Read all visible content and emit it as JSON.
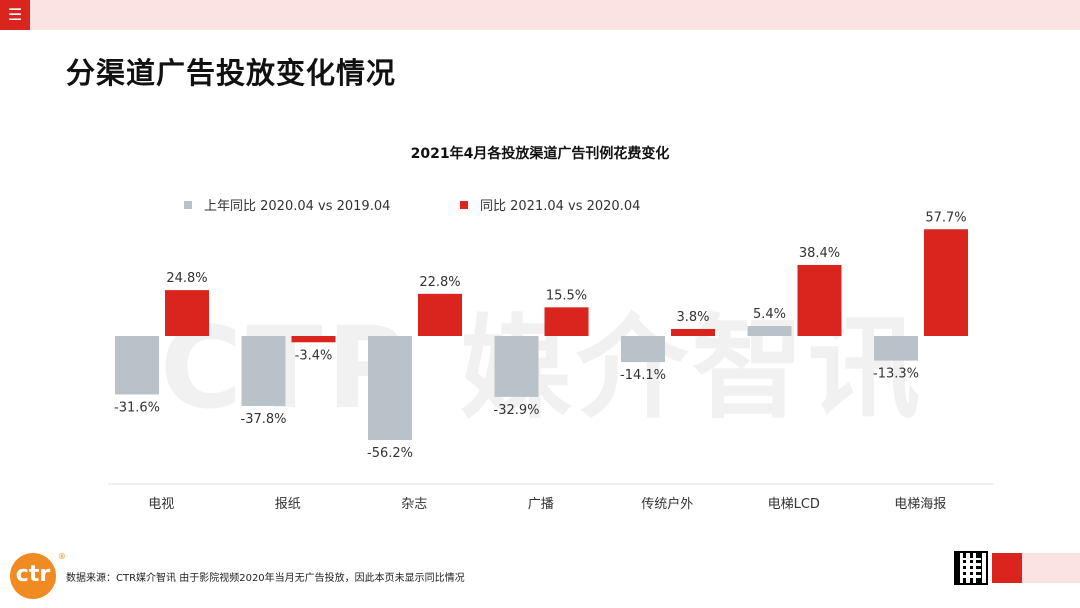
{
  "header": {
    "menu_icon": "menu-icon",
    "menu_glyph": "☰"
  },
  "page_title": "分渠道广告投放变化情况",
  "watermark": "CTR 媒介智讯",
  "colors": {
    "accent": "#d9251d",
    "gray_series": "#b9c2c9",
    "pink": "#fbe3e4",
    "logo": "#f08a22"
  },
  "chart_data": {
    "type": "bar",
    "title": "2021年4月各投放渠道广告刊例花费变化",
    "categories": [
      "电视",
      "报纸",
      "杂志",
      "广播",
      "传统户外",
      "电梯LCD",
      "电梯海报"
    ],
    "series": [
      {
        "name": "上年同比 2020.04 vs 2019.04",
        "color": "#b9c2c9",
        "values": [
          -31.6,
          -37.8,
          -56.2,
          -32.9,
          -14.1,
          5.4,
          -13.3
        ],
        "labels": [
          "-31.6%",
          "-37.8%",
          "-56.2%",
          "-32.9%",
          "-14.1%",
          "5.4%",
          "-13.3%"
        ]
      },
      {
        "name": "同比 2021.04 vs 2020.04",
        "color": "#d9251d",
        "values": [
          24.8,
          -3.4,
          22.8,
          15.5,
          3.8,
          38.4,
          57.7
        ],
        "labels": [
          "24.8%",
          "-3.4%",
          "22.8%",
          "15.5%",
          "3.8%",
          "38.4%",
          "57.7%"
        ]
      }
    ],
    "ylim": [
      -60,
      60
    ],
    "grid": false,
    "legend": "top"
  },
  "footer": {
    "logo_text": "ctr",
    "logo_mark": "®",
    "source": "数据来源：CTR媒介智讯   由于影院视频2020年当月无广告投放，因此本页未显示同比情况"
  }
}
